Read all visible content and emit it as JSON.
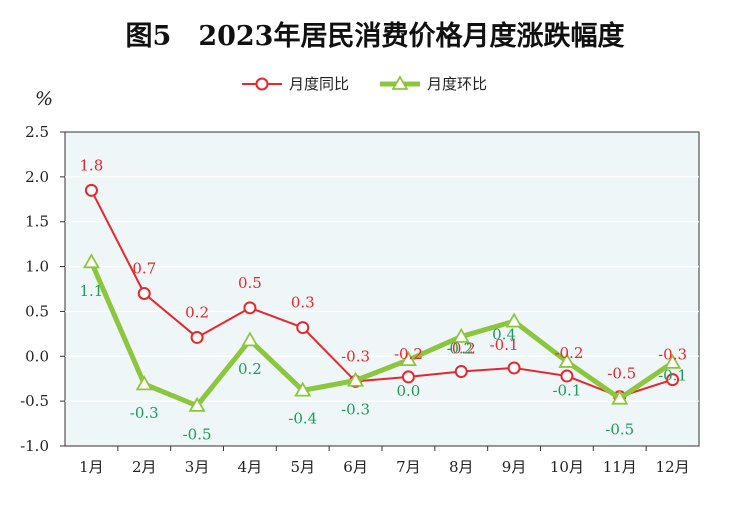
{
  "chart_data": {
    "type": "line",
    "title": "图5　2023年居民消费价格月度涨跌幅度",
    "ylabel": "%",
    "xlabel": "",
    "ylim": [
      -1.0,
      2.5
    ],
    "yticks": [
      "2.5",
      "2.0",
      "1.5",
      "1.0",
      "0.5",
      "0.0",
      "-0.5",
      "-1.0"
    ],
    "ytick_values": [
      2.5,
      2.0,
      1.5,
      1.0,
      0.5,
      0.0,
      -0.5,
      -1.0
    ],
    "categories": [
      "1月",
      "2月",
      "3月",
      "4月",
      "5月",
      "6月",
      "7月",
      "8月",
      "9月",
      "10月",
      "11月",
      "12月"
    ],
    "grid": true,
    "legend_position": "top",
    "series": [
      {
        "name": "月度同比",
        "color": "#e8262d",
        "marker": "circle",
        "values": [
          1.85,
          0.7,
          0.21,
          0.54,
          0.32,
          -0.28,
          -0.23,
          -0.17,
          -0.13,
          -0.22,
          -0.45,
          -0.26
        ],
        "labels": [
          "1.8",
          "0.7",
          "0.2",
          "0.5",
          "0.3",
          "-0.3",
          "-0.2",
          "-0.2",
          "-0.1",
          "-0.2",
          "-0.5",
          "-0.3"
        ]
      },
      {
        "name": "月度环比",
        "color": "#8cc63e",
        "label_color": "#1e9a5a",
        "marker": "triangle",
        "values": [
          1.05,
          -0.31,
          -0.55,
          0.18,
          -0.38,
          -0.27,
          -0.04,
          0.22,
          0.39,
          -0.06,
          -0.47,
          -0.07
        ],
        "labels": [
          "1.1",
          "-0.3",
          "-0.5",
          "0.2",
          "-0.4",
          "-0.3",
          "0.0",
          "0.2",
          "0.4",
          "-0.1",
          "-0.5",
          "-0.1"
        ]
      }
    ]
  }
}
